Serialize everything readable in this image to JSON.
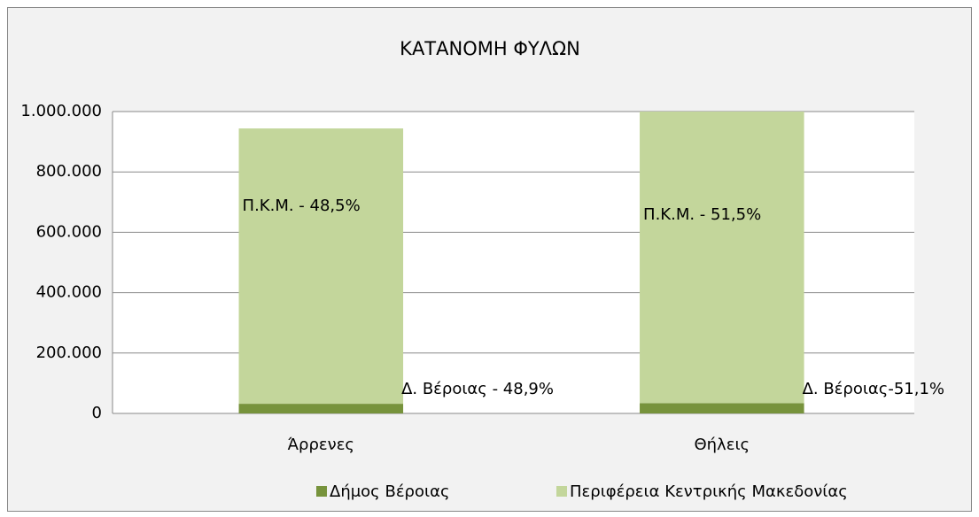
{
  "chart_data": {
    "type": "stacked_bar",
    "title": "ΚΑΤΑΝΟΜΗ ΦΥΛΩΝ",
    "categories": [
      "Άρρενες",
      "Θήλεις"
    ],
    "series": [
      {
        "name": "Δήμος Βέροιας",
        "color": "#77933c",
        "values": [
          32000,
          34000
        ]
      },
      {
        "name": "Περιφέρεια Κεντρικής Μακεδονίας",
        "color": "#c3d69b",
        "values": [
          912000,
          966000
        ]
      }
    ],
    "annotations": [
      {
        "series": 1,
        "category": 0,
        "text": "Π.Κ.Μ. - 48,5%"
      },
      {
        "series": 0,
        "category": 0,
        "text": "Δ. Βέροιας - 48,9%"
      },
      {
        "series": 1,
        "category": 1,
        "text": "Π.Κ.Μ. - 51,5%"
      },
      {
        "series": 0,
        "category": 1,
        "text": "Δ. Βέροιας-51,1%"
      }
    ],
    "ylim": [
      0,
      1000000
    ],
    "yticks": [
      0,
      {
        "value": 200000,
        "label": "200.000"
      },
      {
        "value": 400000,
        "label": "400.000"
      },
      {
        "value": 600000,
        "label": "600.000"
      },
      {
        "value": 800000,
        "label": "800.000"
      },
      {
        "value": 1000000,
        "label": "1.000.000"
      }
    ],
    "grid": true,
    "legend": "bottom"
  }
}
